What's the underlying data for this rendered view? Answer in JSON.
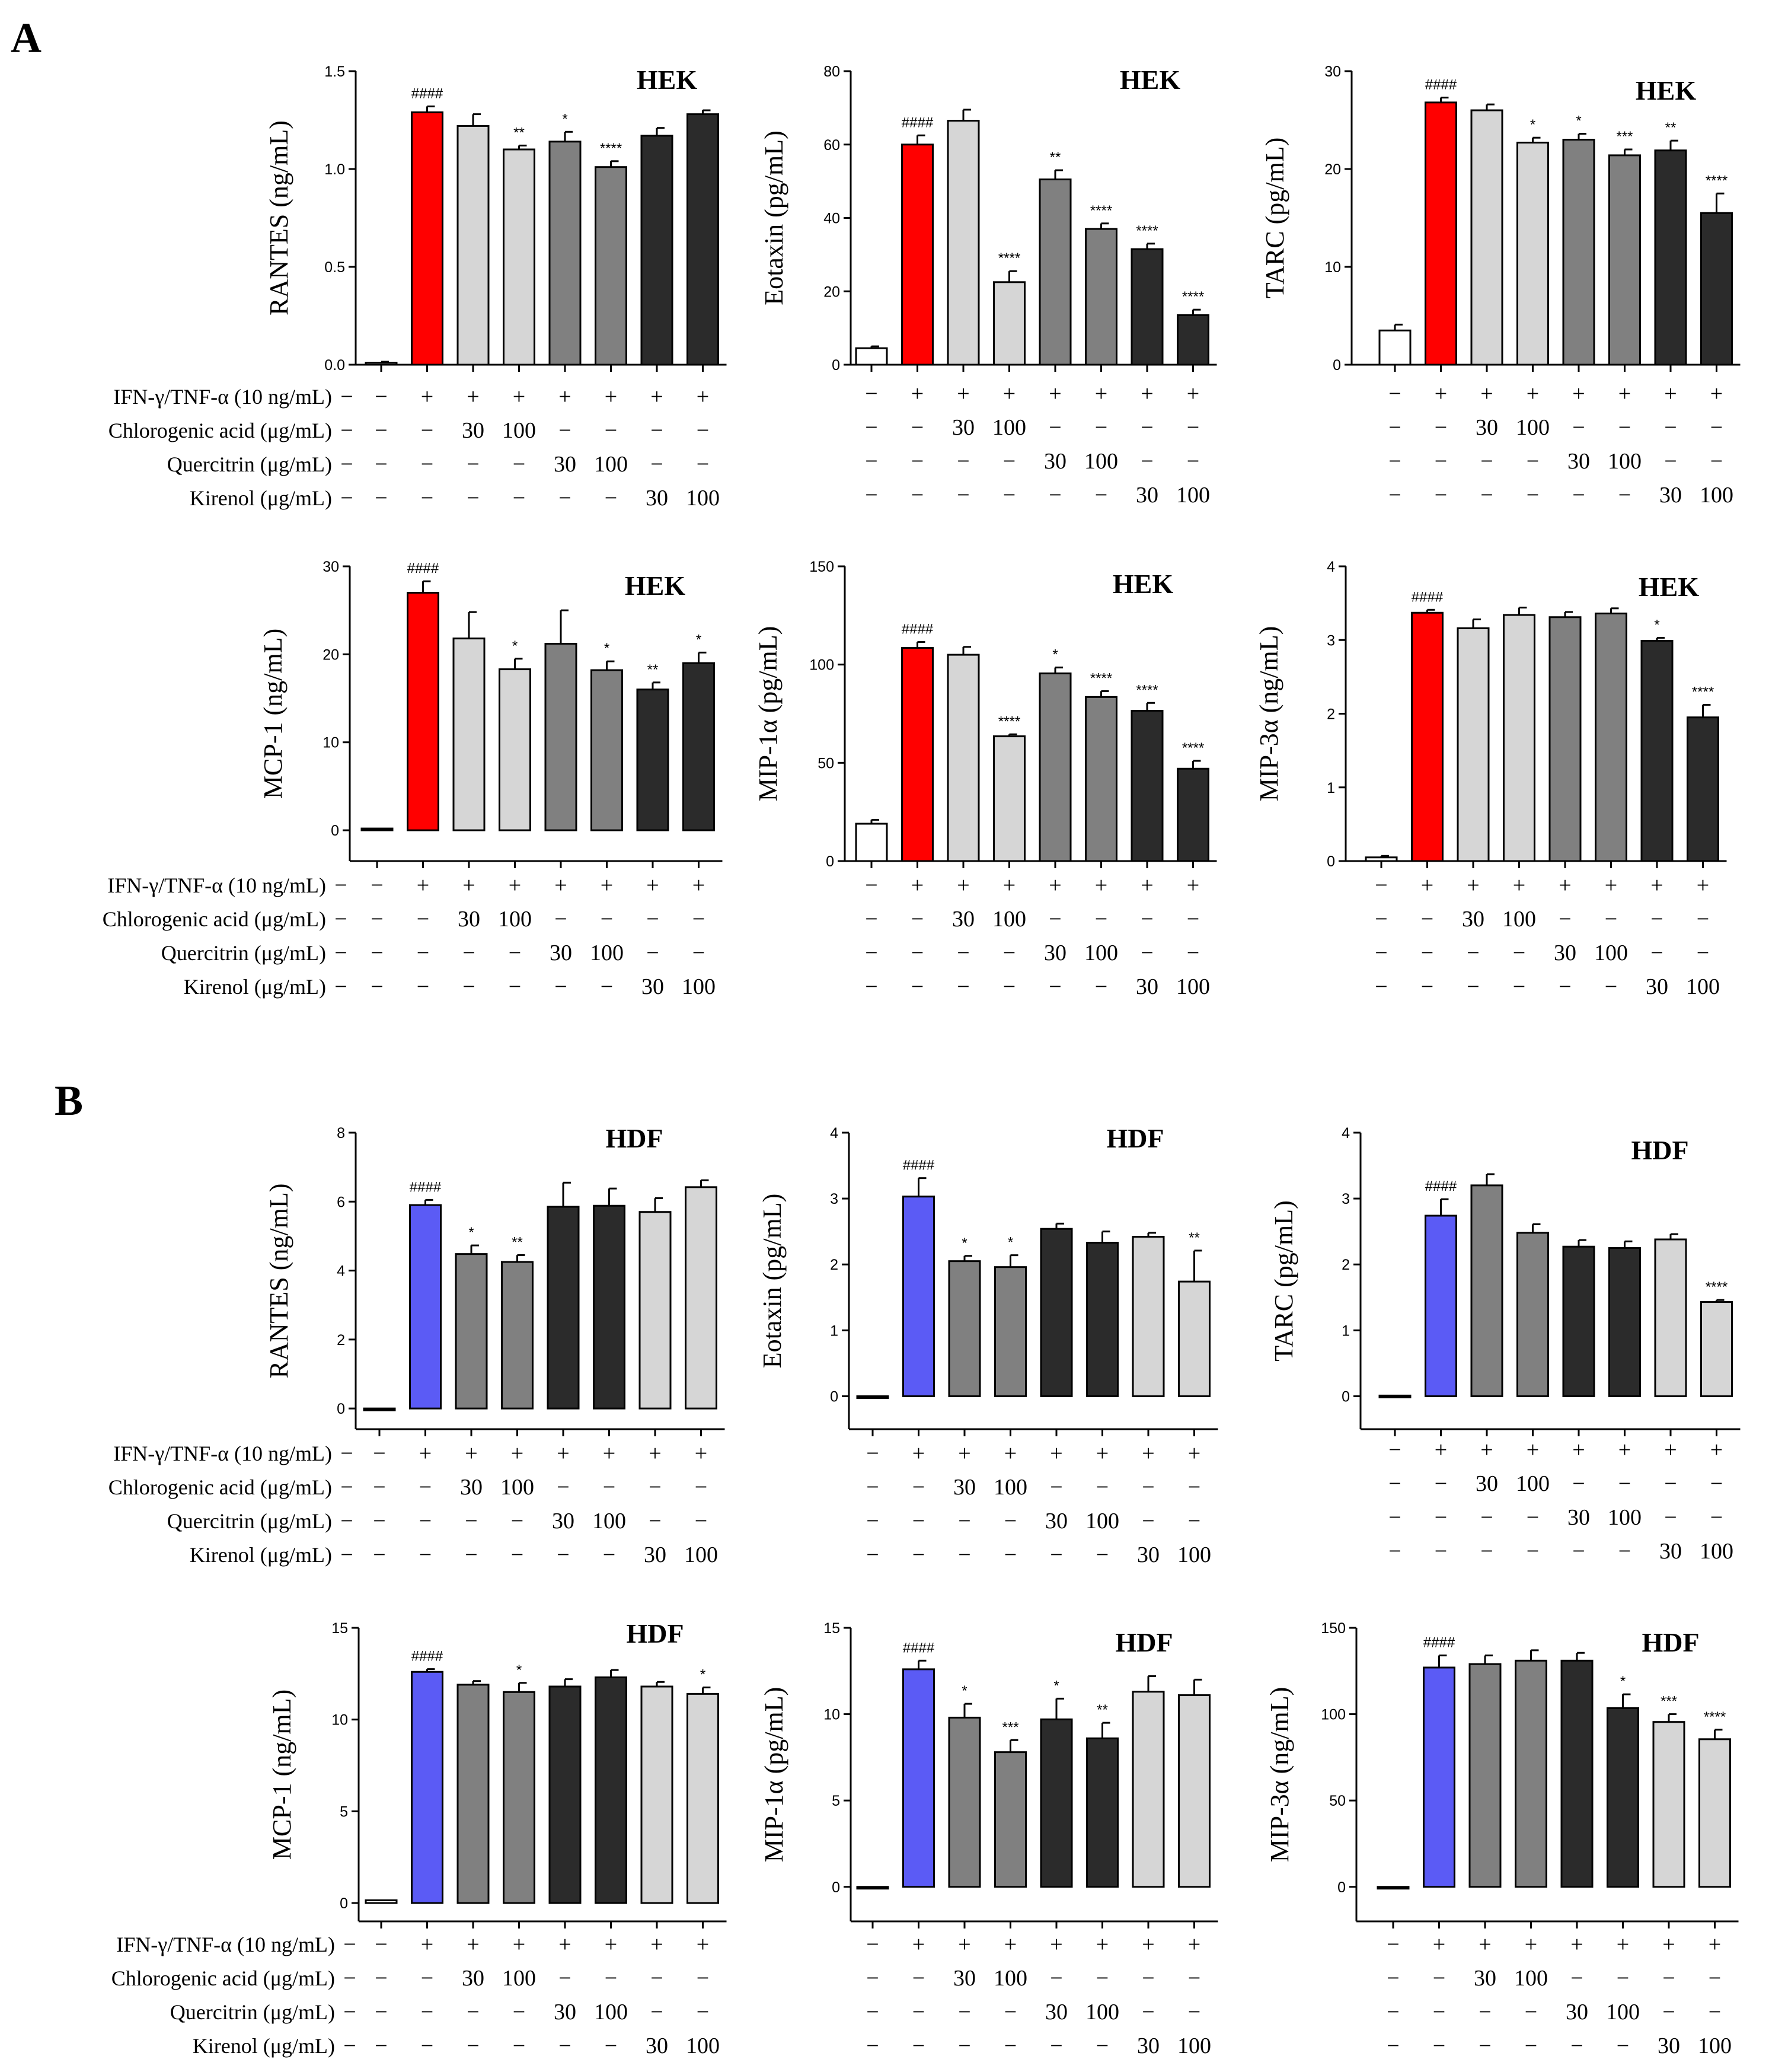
{
  "figure": {
    "panels": [
      {
        "label": "A",
        "cell_type": "HEK"
      },
      {
        "label": "B",
        "cell_type": "HDF"
      }
    ]
  },
  "treatment_rows": [
    {
      "label": "IFN-γ/TNF-α (10 ng/mL)",
      "cells": [
        "−",
        "+",
        "+",
        "+",
        "+",
        "+",
        "+",
        "+"
      ]
    },
    {
      "label": "Chlorogenic acid (μg/mL)",
      "cells": [
        "−",
        "−",
        "30",
        "100",
        "−",
        "−",
        "−",
        "−"
      ]
    },
    {
      "label": "Quercitrin (μg/mL)",
      "cells": [
        "−",
        "−",
        "−",
        "−",
        "30",
        "100",
        "−",
        "−"
      ]
    },
    {
      "label": "Kirenol (μg/mL)",
      "cells": [
        "−",
        "−",
        "−",
        "−",
        "−",
        "−",
        "30",
        "100"
      ]
    }
  ],
  "colors": {
    "control": "#ffffff",
    "hek_stim": "#ff0000",
    "hdf_stim": "#5b5bf5",
    "light": "#d6d6d6",
    "mid": "#808080",
    "dark": "#2b2b2b",
    "outline": "#000000"
  },
  "chart_data": [
    {
      "type": "bar",
      "panel": "A",
      "title": "HEK",
      "ylabel": "RANTES (ng/mL)",
      "ylim": [
        0,
        1.5
      ],
      "yticks": [
        "0.0",
        "0.5",
        "1.0",
        "1.5"
      ],
      "ytick_values": [
        0,
        0.5,
        1.0,
        1.5
      ],
      "values": [
        0.01,
        1.29,
        1.22,
        1.1,
        1.14,
        1.01,
        1.17,
        1.28
      ],
      "errors": [
        0.005,
        0.03,
        0.06,
        0.02,
        0.05,
        0.03,
        0.04,
        0.02
      ],
      "bar_colors": [
        "control",
        "hek_stim",
        "light",
        "light",
        "mid",
        "mid",
        "dark",
        "dark"
      ],
      "annotations": [
        "",
        "####",
        "",
        "**",
        "*",
        "****",
        "",
        ""
      ]
    },
    {
      "type": "bar",
      "panel": "A",
      "title": "HEK",
      "ylabel": "Eotaxin (pg/mL)",
      "ylim": [
        0,
        80
      ],
      "yticks": [
        "0",
        "20",
        "40",
        "60",
        "80"
      ],
      "ytick_values": [
        0,
        20,
        40,
        60,
        80
      ],
      "values": [
        4.5,
        60,
        66.5,
        22.5,
        50.5,
        37,
        31.5,
        13.5
      ],
      "errors": [
        0.5,
        2.5,
        3,
        3,
        2.5,
        1.5,
        1.5,
        1.5
      ],
      "bar_colors": [
        "control",
        "hek_stim",
        "light",
        "light",
        "mid",
        "mid",
        "dark",
        "dark"
      ],
      "annotations": [
        "",
        "####",
        "",
        "****",
        "**",
        "****",
        "****",
        "****"
      ]
    },
    {
      "type": "bar",
      "panel": "A",
      "title": "HEK",
      "ylabel": "TARC (pg/mL)",
      "ylim": [
        0,
        30
      ],
      "yticks": [
        "0",
        "10",
        "20",
        "30"
      ],
      "ytick_values": [
        0,
        10,
        20,
        30
      ],
      "values": [
        3.5,
        26.8,
        26,
        22.7,
        23,
        21.4,
        21.9,
        15.5
      ],
      "errors": [
        0.6,
        0.5,
        0.6,
        0.5,
        0.6,
        0.6,
        1,
        2
      ],
      "bar_colors": [
        "control",
        "hek_stim",
        "light",
        "light",
        "mid",
        "mid",
        "dark",
        "dark"
      ],
      "annotations": [
        "",
        "####",
        "",
        "*",
        "*",
        "***",
        "**",
        "****"
      ]
    },
    {
      "type": "bar",
      "panel": "A",
      "title": "HEK",
      "ylabel": "MCP-1 (ng/mL)",
      "ylim": [
        -3.5,
        30
      ],
      "yticks": [
        "0",
        "10",
        "20",
        "30"
      ],
      "ytick_values": [
        0,
        10,
        20,
        30
      ],
      "values": [
        0.2,
        27,
        21.8,
        18.3,
        21.2,
        18.2,
        16,
        19
      ],
      "errors": [
        0,
        1.3,
        3,
        1.2,
        3.8,
        1,
        0.8,
        1.2
      ],
      "bar_colors": [
        "control",
        "hek_stim",
        "light",
        "light",
        "mid",
        "mid",
        "dark",
        "dark"
      ],
      "annotations": [
        "",
        "####",
        "",
        "*",
        "",
        "*",
        "**",
        "*"
      ]
    },
    {
      "type": "bar",
      "panel": "A",
      "title": "HEK",
      "ylabel": "MIP-1α (pg/mL)",
      "ylim": [
        0,
        150
      ],
      "yticks": [
        "0",
        "50",
        "100",
        "150"
      ],
      "ytick_values": [
        0,
        50,
        100,
        150
      ],
      "values": [
        19,
        108.5,
        105,
        63.5,
        95.5,
        83.5,
        76.5,
        47
      ],
      "errors": [
        2,
        3,
        4,
        1,
        3,
        3,
        4,
        4
      ],
      "bar_colors": [
        "control",
        "hek_stim",
        "light",
        "light",
        "mid",
        "mid",
        "dark",
        "dark"
      ],
      "annotations": [
        "",
        "####",
        "",
        "****",
        "*",
        "****",
        "****",
        "****"
      ]
    },
    {
      "type": "bar",
      "panel": "A",
      "title": "HEK",
      "ylabel": "MIP-3α (ng/mL)",
      "ylim": [
        0,
        4
      ],
      "yticks": [
        "0",
        "1",
        "2",
        "3",
        "4"
      ],
      "ytick_values": [
        0,
        1,
        2,
        3,
        4
      ],
      "values": [
        0.05,
        3.37,
        3.16,
        3.34,
        3.31,
        3.36,
        2.99,
        1.95
      ],
      "errors": [
        0.02,
        0.04,
        0.12,
        0.1,
        0.07,
        0.07,
        0.04,
        0.17
      ],
      "bar_colors": [
        "control",
        "hek_stim",
        "light",
        "light",
        "mid",
        "mid",
        "dark",
        "dark"
      ],
      "annotations": [
        "",
        "####",
        "",
        "",
        "",
        "",
        "*",
        "****"
      ]
    },
    {
      "type": "bar",
      "panel": "B",
      "title": "HDF",
      "ylabel": "RANTES (ng/mL)",
      "ylim": [
        -0.6,
        8
      ],
      "yticks": [
        "0",
        "2",
        "4",
        "6",
        "8"
      ],
      "ytick_values": [
        0,
        2,
        4,
        6,
        8
      ],
      "values": [
        -0.05,
        5.9,
        4.48,
        4.25,
        5.85,
        5.88,
        5.7,
        6.42
      ],
      "errors": [
        0,
        0.15,
        0.25,
        0.2,
        0.7,
        0.5,
        0.4,
        0.2
      ],
      "bar_colors": [
        "control",
        "hdf_stim",
        "mid",
        "mid",
        "dark",
        "dark",
        "light",
        "light"
      ],
      "annotations": [
        "",
        "####",
        "*",
        "**",
        "",
        "",
        "",
        ""
      ]
    },
    {
      "type": "bar",
      "panel": "B",
      "title": "HDF",
      "ylabel": "Eotaxin (pg/mL)",
      "ylim": [
        -0.5,
        4
      ],
      "yticks": [
        "0",
        "1",
        "2",
        "3",
        "4"
      ],
      "ytick_values": [
        0,
        1,
        2,
        3,
        4
      ],
      "values": [
        -0.02,
        3.03,
        2.05,
        1.96,
        2.54,
        2.33,
        2.42,
        1.74
      ],
      "errors": [
        0,
        0.28,
        0.08,
        0.18,
        0.08,
        0.17,
        0.06,
        0.47
      ],
      "bar_colors": [
        "control",
        "hdf_stim",
        "mid",
        "mid",
        "dark",
        "dark",
        "light",
        "light"
      ],
      "annotations": [
        "",
        "####",
        "*",
        "*",
        "",
        "",
        "",
        "**"
      ]
    },
    {
      "type": "bar",
      "panel": "B",
      "title": "HDF",
      "ylabel": "TARC (pg/mL)",
      "ylim": [
        -0.5,
        4
      ],
      "yticks": [
        "0",
        "1",
        "2",
        "3",
        "4"
      ],
      "ytick_values": [
        0,
        1,
        2,
        3,
        4
      ],
      "values": [
        0.01,
        2.74,
        3.2,
        2.48,
        2.27,
        2.25,
        2.38,
        1.43
      ],
      "errors": [
        0,
        0.25,
        0.17,
        0.13,
        0.1,
        0.1,
        0.08,
        0.03
      ],
      "bar_colors": [
        "control",
        "hdf_stim",
        "mid",
        "mid",
        "dark",
        "dark",
        "light",
        "light"
      ],
      "annotations": [
        "",
        "####",
        "",
        "",
        "",
        "",
        "",
        "****"
      ]
    },
    {
      "type": "bar",
      "panel": "B",
      "title": "HDF",
      "ylabel": "MCP-1 (ng/mL)",
      "ylim": [
        -1,
        15
      ],
      "yticks": [
        "0",
        "5",
        "10",
        "15"
      ],
      "ytick_values": [
        0,
        5,
        10,
        15
      ],
      "values": [
        0.15,
        12.6,
        11.9,
        11.5,
        11.8,
        12.3,
        11.8,
        11.4
      ],
      "errors": [
        0,
        0.15,
        0.2,
        0.5,
        0.4,
        0.4,
        0.25,
        0.35
      ],
      "bar_colors": [
        "control",
        "hdf_stim",
        "mid",
        "mid",
        "dark",
        "dark",
        "light",
        "light"
      ],
      "annotations": [
        "",
        "####",
        "",
        "*",
        "",
        "",
        "",
        "*"
      ]
    },
    {
      "type": "bar",
      "panel": "B",
      "title": "HDF",
      "ylabel": "MIP-1α (pg/mL)",
      "ylim": [
        -2,
        15
      ],
      "yticks": [
        "0",
        "5",
        "10",
        "15"
      ],
      "ytick_values": [
        0,
        5,
        10,
        15
      ],
      "values": [
        -0.05,
        12.6,
        9.8,
        7.8,
        9.7,
        8.6,
        11.3,
        11.1
      ],
      "errors": [
        0,
        0.5,
        0.8,
        0.7,
        1.2,
        0.9,
        0.9,
        0.9
      ],
      "bar_colors": [
        "control",
        "hdf_stim",
        "mid",
        "mid",
        "dark",
        "dark",
        "light",
        "light"
      ],
      "annotations": [
        "",
        "####",
        "*",
        "***",
        "*",
        "**",
        "",
        ""
      ]
    },
    {
      "type": "bar",
      "panel": "B",
      "title": "HDF",
      "ylabel": "MIP-3α (ng/mL)",
      "ylim": [
        -20,
        150
      ],
      "yticks": [
        "0",
        "50",
        "100",
        "150"
      ],
      "ytick_values": [
        0,
        50,
        100,
        150
      ],
      "values": [
        -0.5,
        127,
        129,
        131,
        131,
        103.5,
        95.5,
        85.5
      ],
      "errors": [
        0,
        7,
        5,
        6,
        4.5,
        8,
        4.5,
        5.5
      ],
      "bar_colors": [
        "control",
        "hdf_stim",
        "mid",
        "mid",
        "dark",
        "dark",
        "light",
        "light"
      ],
      "annotations": [
        "",
        "####",
        "",
        "",
        "",
        "*",
        "***",
        "****"
      ]
    }
  ]
}
